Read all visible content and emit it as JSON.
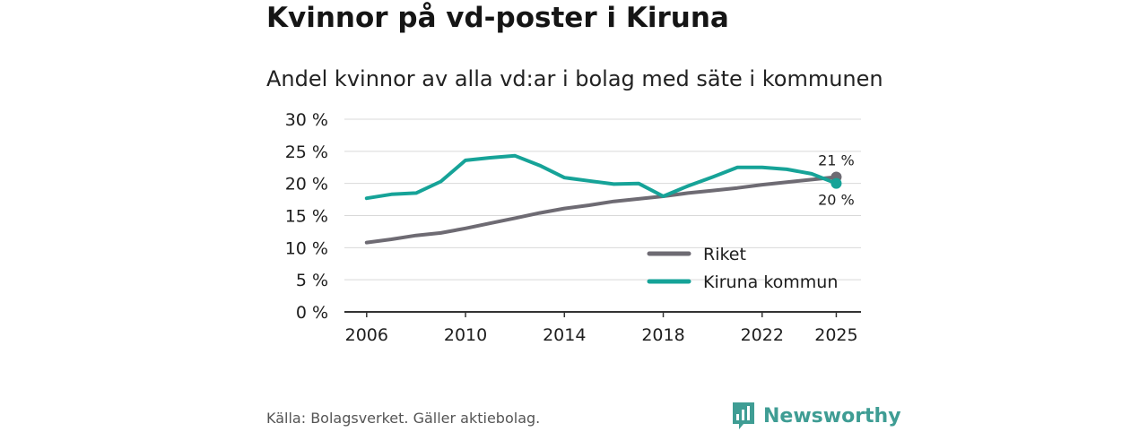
{
  "title": "Kvinnor på vd-poster i Kiruna",
  "subtitle": "Andel kvinnor av alla vd:ar i bolag med säte i kommunen",
  "source": "Källa: Bolagsverket. Gäller aktiebolag.",
  "brand": "Newsworthy",
  "colors": {
    "riket": "#6e6b73",
    "kiruna": "#16a398",
    "grid": "#d9d9d9",
    "axis": "#333333",
    "brand": "#3f9d94"
  },
  "chart_data": {
    "type": "line",
    "title": "Andel kvinnor av alla vd:ar i bolag med säte i kommunen",
    "xlabel": "",
    "ylabel": "",
    "x": [
      2006,
      2007,
      2008,
      2009,
      2010,
      2011,
      2012,
      2013,
      2014,
      2015,
      2016,
      2017,
      2018,
      2019,
      2020,
      2021,
      2022,
      2023,
      2024,
      2025
    ],
    "xlim": [
      2005.1,
      2026
    ],
    "ylim": [
      0,
      30
    ],
    "xticks": [
      "2006",
      "2010",
      "2014",
      "2018",
      "2022",
      "2025"
    ],
    "yticks": [
      "0 %",
      "5 %",
      "10 %",
      "15 %",
      "20 %",
      "25 %",
      "30 %"
    ],
    "grid": true,
    "legend_position": "bottom-right",
    "series": [
      {
        "name": "Riket",
        "values": [
          10.8,
          11.3,
          11.9,
          12.3,
          13.0,
          13.8,
          14.6,
          15.4,
          16.1,
          16.6,
          17.2,
          17.6,
          18.0,
          18.5,
          18.9,
          19.3,
          19.8,
          20.2,
          20.6,
          21.0
        ],
        "end_label": "21 %"
      },
      {
        "name": "Kiruna kommun",
        "values": [
          17.7,
          18.3,
          18.5,
          20.3,
          23.6,
          24.0,
          24.3,
          22.8,
          20.9,
          20.4,
          19.9,
          20.0,
          18.0,
          19.6,
          21.0,
          22.5,
          22.5,
          22.2,
          21.5,
          20.0
        ],
        "end_label": "20 %"
      }
    ]
  }
}
